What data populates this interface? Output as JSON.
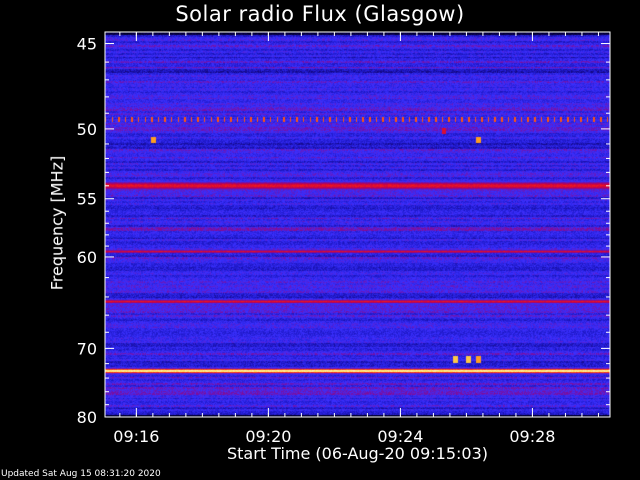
{
  "colors": {
    "background": "#000000",
    "text": "#ffffff",
    "axis": "#ffffff",
    "colormap": [
      "#000028",
      "#100060",
      "#1e18c8",
      "#3a30ff",
      "#7a0ea0",
      "#c0004a",
      "#ff2010",
      "#ff8c10",
      "#ffe860",
      "#ffffff"
    ]
  },
  "footer": "Updated Sat Aug 15 08:31:20 2020",
  "chart_data": {
    "type": "heatmap",
    "title": "Solar radio Flux (Glasgow)",
    "xlabel": "Start Time (06-Aug-20 09:15:03)",
    "ylabel": "Frequency [MHz]",
    "x_axis": {
      "start": "09:15:03",
      "range_minutes": [
        0,
        15.3
      ],
      "major_ticks": [
        {
          "minutes": 0.95,
          "label": "09:16"
        },
        {
          "minutes": 4.95,
          "label": "09:20"
        },
        {
          "minutes": 8.95,
          "label": "09:24"
        },
        {
          "minutes": 12.95,
          "label": "09:28"
        }
      ],
      "minor_tick_step_minutes": 0.5
    },
    "y_axis": {
      "range_mhz": [
        44.4,
        80
      ],
      "inverted": true,
      "scale": "reciprocal",
      "major_ticks": [
        45,
        50,
        55,
        60,
        70,
        80
      ],
      "minor_ticks": [
        46,
        47,
        48,
        49,
        51,
        52,
        53,
        54,
        56,
        57,
        58,
        59,
        62,
        64,
        66,
        68,
        72,
        74,
        76,
        78
      ]
    },
    "intensity_scale": "arbitrary, dark blue = low, white = high",
    "background_intensity": 0.3,
    "persistent_bands": [
      {
        "freq_mhz": 54.0,
        "intensity": 0.62,
        "width_mhz": 0.55
      },
      {
        "freq_mhz": 59.5,
        "intensity": 0.6,
        "width_mhz": 0.25
      },
      {
        "freq_mhz": 64.5,
        "intensity": 0.62,
        "width_mhz": 0.35
      },
      {
        "freq_mhz": 73.0,
        "intensity": 0.95,
        "width_mhz": 0.5
      }
    ],
    "intermittent_band": {
      "freq_mhz": 49.4,
      "intensity": 0.72,
      "pulse_period_minutes": 0.2
    },
    "bursts": [
      {
        "time_minutes": 1.45,
        "freq_mhz": 50.7,
        "intensity": 0.8
      },
      {
        "time_minutes": 10.25,
        "freq_mhz": 50.1,
        "intensity": 0.6
      },
      {
        "time_minutes": 11.3,
        "freq_mhz": 50.7,
        "intensity": 0.8
      },
      {
        "time_minutes": 10.6,
        "freq_mhz": 71.4,
        "intensity": 0.85
      },
      {
        "time_minutes": 11.0,
        "freq_mhz": 71.4,
        "intensity": 0.85
      },
      {
        "time_minutes": 11.3,
        "freq_mhz": 71.4,
        "intensity": 0.8
      }
    ]
  }
}
